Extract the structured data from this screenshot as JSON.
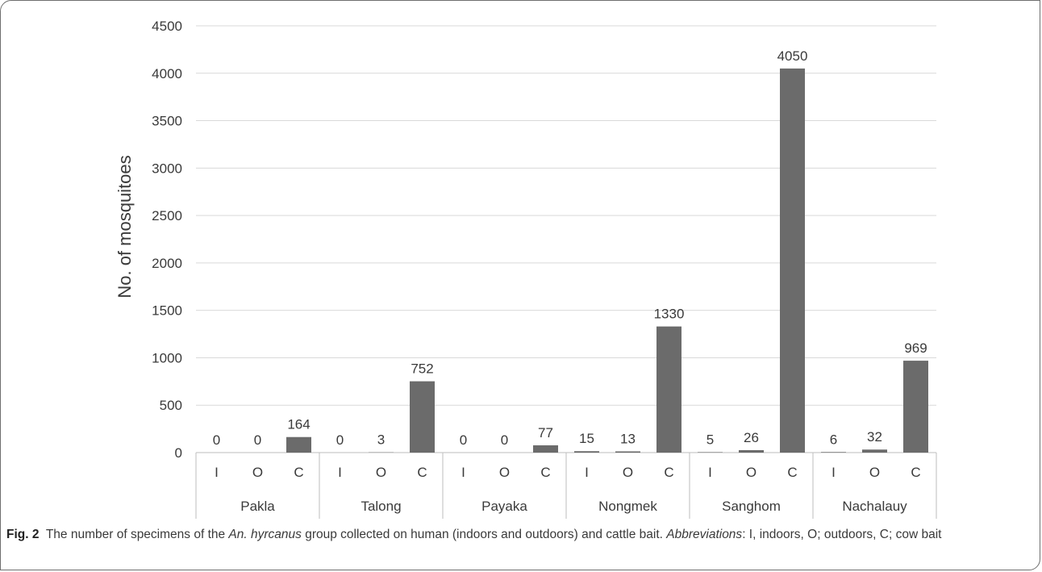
{
  "chart_data": {
    "type": "bar",
    "ylabel": "No. of mosquitoes",
    "ylim": [
      0,
      4500
    ],
    "yticks": [
      0,
      500,
      1000,
      1500,
      2000,
      2500,
      3000,
      3500,
      4000,
      4500
    ],
    "grid": true,
    "groups": [
      "Pakla",
      "Talong",
      "Payaka",
      "Nongmek",
      "Sanghom",
      "Nachalauy"
    ],
    "subcategories": [
      "I",
      "O",
      "C"
    ],
    "values": [
      [
        0,
        0,
        164
      ],
      [
        0,
        3,
        752
      ],
      [
        0,
        0,
        77
      ],
      [
        15,
        13,
        1330
      ],
      [
        5,
        26,
        4050
      ],
      [
        6,
        32,
        969
      ]
    ],
    "bar_color": "#6b6b6b"
  },
  "caption": {
    "fig_label": "Fig. 2",
    "text_1": "The number of specimens of the ",
    "species": "An. hyrcanus",
    "text_2": " group collected on human (indoors and outdoors) and cattle bait. ",
    "abbrev_label": "Abbreviations",
    "text_3": ": I, indoors, O; outdoors, C; cow bait"
  }
}
